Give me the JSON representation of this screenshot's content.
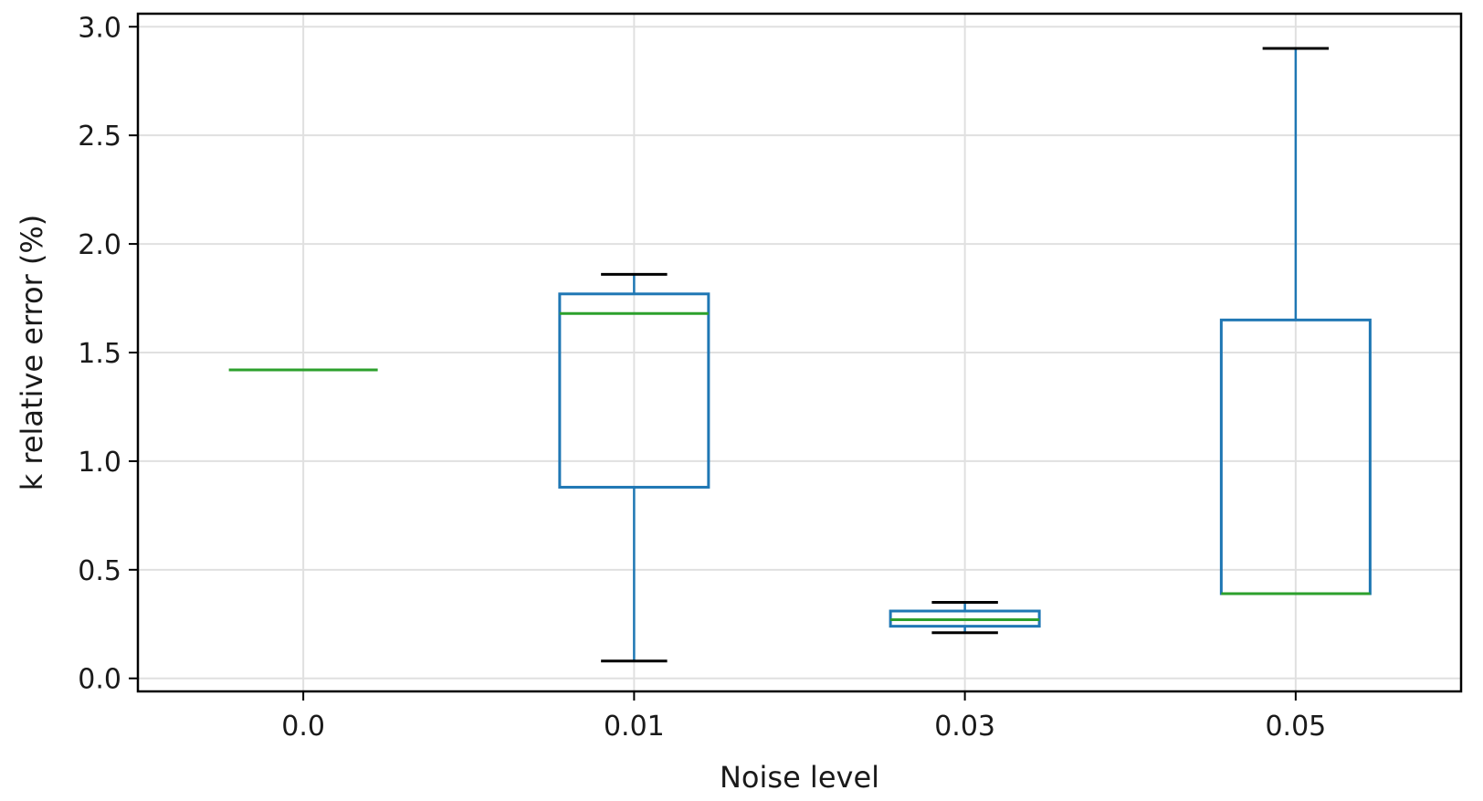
{
  "chart_data": {
    "type": "box",
    "title": "",
    "xlabel": "Noise level",
    "ylabel": "k relative error (%)",
    "categories": [
      "0.0",
      "0.01",
      "0.03",
      "0.05"
    ],
    "boxes": [
      {
        "category": "0.0",
        "whislo": 1.42,
        "q1": 1.42,
        "med": 1.42,
        "q3": 1.42,
        "whishi": 1.42
      },
      {
        "category": "0.01",
        "whislo": 0.08,
        "q1": 0.88,
        "med": 1.68,
        "q3": 1.77,
        "whishi": 1.86
      },
      {
        "category": "0.03",
        "whislo": 0.21,
        "q1": 0.24,
        "med": 0.27,
        "q3": 0.31,
        "whishi": 0.35
      },
      {
        "category": "0.05",
        "whislo": 0.39,
        "q1": 0.39,
        "med": 0.39,
        "q3": 1.65,
        "whishi": 2.9
      }
    ],
    "yticks": [
      "0.0",
      "0.5",
      "1.0",
      "1.5",
      "2.0",
      "2.5",
      "3.0"
    ],
    "ylim": [
      -0.06,
      3.06
    ],
    "grid": true,
    "colors": {
      "box": "#1f77b4",
      "median": "#2ca02c",
      "whisker_cap": "#000000",
      "grid": "#e0e0e0"
    }
  }
}
